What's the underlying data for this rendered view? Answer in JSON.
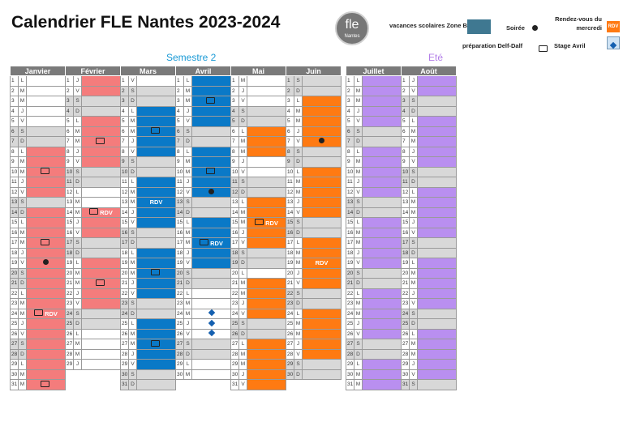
{
  "title": "Calendrier FLE Nantes 2023-2024",
  "logo": {
    "main": "fle",
    "sub": "Nantes"
  },
  "semester_label": "Semestre 2",
  "summer_label": "Eté",
  "legend": {
    "vacances": "vacances scolaires Zone B",
    "soiree": "Soirée",
    "rdv": "Rendez-vous du mercredi",
    "prep": "préparation Delf-Dalf",
    "stage": "Stage Avril",
    "rdv_short": "RDV"
  },
  "colors": {
    "pink": "#f47c7c",
    "blue": "#0a79c7",
    "orange": "#ff7a12",
    "purple": "#b98ff0",
    "weekend": "#d8d8d8",
    "vacation": "#3f7891"
  },
  "months": [
    {
      "name": "Janvier",
      "letters": [
        "L",
        "M",
        "M",
        "J",
        "V",
        "S",
        "D",
        "L",
        "M",
        "M",
        "J",
        "V",
        "S",
        "D",
        "L",
        "M",
        "M",
        "J",
        "V",
        "S",
        "D",
        "L",
        "M",
        "M",
        "J",
        "V",
        "S",
        "D",
        "L",
        "M",
        "M"
      ],
      "color": "pink",
      "fill": [
        8,
        9,
        10,
        11,
        12,
        14,
        15,
        16,
        17,
        18,
        19,
        20,
        21,
        22,
        23,
        24,
        25,
        26,
        27,
        28,
        29,
        30,
        31
      ],
      "icons": {
        "10": "book",
        "17": "book",
        "19": "dot",
        "24": "book+rdv",
        "31": "book"
      }
    },
    {
      "name": "Février",
      "letters": [
        "J",
        "V",
        "S",
        "D",
        "L",
        "M",
        "M",
        "J",
        "V",
        "S",
        "D",
        "L",
        "M",
        "M",
        "J",
        "V",
        "S",
        "D",
        "L",
        "M",
        "M",
        "J",
        "V",
        "S",
        "D",
        "L",
        "M",
        "M",
        "J"
      ],
      "color": "pink",
      "fill": [
        1,
        2,
        5,
        6,
        7,
        8,
        9,
        14,
        15,
        16,
        19,
        20,
        21,
        22,
        23
      ],
      "icons": {
        "7": "book",
        "14": "book+rdv",
        "21": "book"
      }
    },
    {
      "name": "Mars",
      "letters": [
        "V",
        "S",
        "D",
        "L",
        "M",
        "M",
        "J",
        "V",
        "S",
        "D",
        "L",
        "M",
        "M",
        "J",
        "V",
        "S",
        "D",
        "L",
        "M",
        "M",
        "J",
        "V",
        "S",
        "D",
        "L",
        "M",
        "M",
        "J",
        "V",
        "S",
        "D"
      ],
      "color": "blue",
      "fill": [
        4,
        5,
        6,
        7,
        8,
        11,
        12,
        13,
        14,
        15,
        18,
        19,
        20,
        21,
        22,
        25,
        26,
        27,
        28,
        29
      ],
      "icons": {
        "6": "book",
        "13": "rdv",
        "20": "book",
        "27": "book"
      }
    },
    {
      "name": "Avril",
      "letters": [
        "L",
        "M",
        "M",
        "J",
        "V",
        "S",
        "D",
        "L",
        "M",
        "M",
        "J",
        "V",
        "S",
        "D",
        "L",
        "M",
        "M",
        "J",
        "V",
        "S",
        "D",
        "L",
        "M",
        "M",
        "J",
        "V",
        "S",
        "D",
        "L",
        "M"
      ],
      "color": "blue",
      "fill": [
        1,
        2,
        3,
        4,
        5,
        8,
        9,
        10,
        11,
        12,
        15,
        16,
        17,
        18,
        19
      ],
      "icons": {
        "3": "book",
        "10": "book",
        "12": "dot",
        "17": "book+rdv",
        "24": "diamond",
        "25": "diamond",
        "26": "diamond"
      }
    },
    {
      "name": "Mai",
      "letters": [
        "M",
        "J",
        "V",
        "S",
        "D",
        "L",
        "M",
        "M",
        "J",
        "V",
        "S",
        "D",
        "L",
        "M",
        "M",
        "J",
        "V",
        "S",
        "D",
        "L",
        "M",
        "M",
        "J",
        "V",
        "S",
        "D",
        "L",
        "M",
        "M",
        "J",
        "V"
      ],
      "color": "orange",
      "fill": [
        6,
        7,
        8,
        13,
        14,
        15,
        16,
        17,
        21,
        22,
        23,
        24,
        27,
        28,
        29,
        30,
        31
      ],
      "icons": {
        "15": "book+rdv"
      }
    },
    {
      "name": "Juin",
      "letters": [
        "S",
        "D",
        "L",
        "M",
        "M",
        "J",
        "V",
        "S",
        "D",
        "L",
        "M",
        "M",
        "J",
        "V",
        "S",
        "D",
        "L",
        "M",
        "M",
        "J",
        "V",
        "S",
        "D",
        "L",
        "M",
        "M",
        "J",
        "V",
        "S",
        "D"
      ],
      "color": "orange",
      "fill": [
        3,
        4,
        5,
        6,
        7,
        10,
        11,
        12,
        13,
        14,
        17,
        18,
        19,
        20,
        21,
        24,
        25,
        26,
        27,
        28
      ],
      "icons": {
        "7": "dot",
        "19": "rdv"
      }
    },
    {
      "name": "Juillet",
      "letters": [
        "L",
        "M",
        "M",
        "J",
        "V",
        "S",
        "D",
        "L",
        "M",
        "M",
        "J",
        "V",
        "S",
        "D",
        "L",
        "M",
        "M",
        "J",
        "V",
        "S",
        "D",
        "L",
        "M",
        "M",
        "J",
        "V",
        "S",
        "D",
        "L",
        "M",
        "M"
      ],
      "color": "purple",
      "fill": [
        1,
        2,
        3,
        4,
        5,
        8,
        9,
        10,
        11,
        12,
        15,
        16,
        17,
        18,
        19,
        22,
        23,
        24,
        25,
        26,
        29,
        30,
        31
      ],
      "icons": {}
    },
    {
      "name": "Août",
      "letters": [
        "J",
        "V",
        "S",
        "D",
        "L",
        "M",
        "M",
        "J",
        "V",
        "S",
        "D",
        "L",
        "M",
        "M",
        "J",
        "V",
        "S",
        "D",
        "L",
        "M",
        "M",
        "J",
        "V",
        "S",
        "D",
        "L",
        "M",
        "M",
        "J",
        "V",
        "S"
      ],
      "color": "purple",
      "fill": [
        1,
        2,
        5,
        6,
        7,
        8,
        9,
        12,
        13,
        14,
        15,
        16,
        19,
        20,
        21,
        22,
        23,
        26,
        27,
        28,
        29,
        30
      ],
      "icons": {}
    }
  ]
}
